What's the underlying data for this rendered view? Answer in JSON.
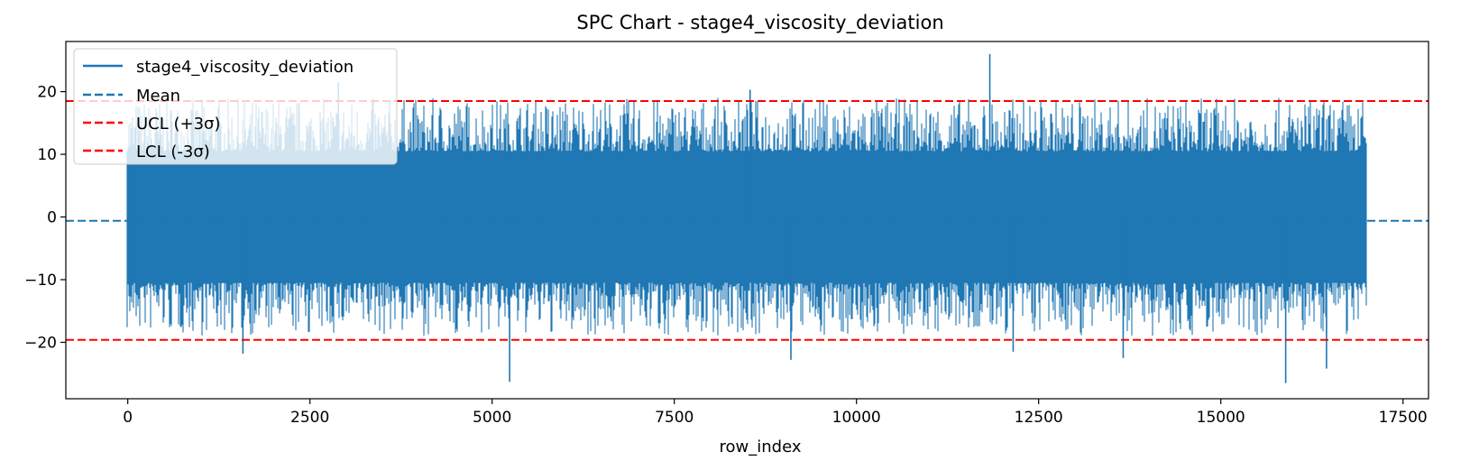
{
  "chart_data": {
    "type": "line",
    "title": "SPC Chart - stage4_viscosity_deviation",
    "xlabel": "row_index",
    "ylabel": "",
    "xlim": [
      -850,
      17850
    ],
    "ylim": [
      -29,
      28
    ],
    "x_ticks": [
      0,
      2500,
      5000,
      7500,
      10000,
      12500,
      15000,
      17500
    ],
    "x_tick_labels": [
      "0",
      "2500",
      "5000",
      "7500",
      "10000",
      "12500",
      "15000",
      "17500"
    ],
    "y_ticks": [
      -20,
      -10,
      0,
      10,
      20
    ],
    "y_tick_labels": [
      "−20",
      "−10",
      "0",
      "10",
      "20"
    ],
    "grid": false,
    "legend_position": "top-left",
    "series": [
      {
        "name": "stage4_viscosity_deviation",
        "color": "#1f77b4",
        "style": "solid",
        "x_range": [
          0,
          17000
        ],
        "band_low": -10,
        "band_high": 10,
        "spikes": [
          {
            "x": 11830,
            "y": 26
          },
          {
            "x": 15890,
            "y": -26.5
          },
          {
            "x": 5240,
            "y": -26.3
          },
          {
            "x": 2890,
            "y": 21.5
          },
          {
            "x": 9100,
            "y": -22.8
          },
          {
            "x": 16450,
            "y": -24.2
          },
          {
            "x": 13660,
            "y": -22.5
          },
          {
            "x": 1580,
            "y": -21.8
          },
          {
            "x": 12150,
            "y": -21.5
          },
          {
            "x": 8540,
            "y": 20.3
          }
        ]
      },
      {
        "name": "Mean",
        "color": "#1f77b4",
        "style": "dashed",
        "value": -0.6
      },
      {
        "name": "UCL (+3σ)",
        "color": "#ff0000",
        "style": "dashed",
        "value": 18.5
      },
      {
        "name": "LCL (-3σ)",
        "color": "#ff0000",
        "style": "dashed",
        "value": -19.6
      }
    ]
  }
}
